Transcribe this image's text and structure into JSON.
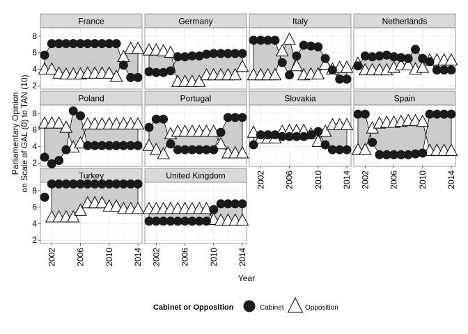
{
  "chart_data": {
    "type": "scatter",
    "xlabel": "Year",
    "ylabel_lines": [
      "Parliamentary Opinion",
      "on Scale of GAL (0) to TAN (10)"
    ],
    "xlim": [
      2001,
      2014
    ],
    "ylim": [
      1.6,
      9.0
    ],
    "x_ticks": [
      2002,
      2006,
      2010,
      2014
    ],
    "y_ticks": [
      2,
      4,
      6,
      8
    ],
    "grid": true,
    "legend": {
      "title": "Cabinet or Opposition",
      "placement": "bottom",
      "entries": [
        {
          "label": "Cabinet",
          "marker": "circle",
          "color": "#1a1a1a"
        },
        {
          "label": "Opposition",
          "marker": "triangle",
          "color": "#ffffff"
        }
      ]
    },
    "colors": {
      "panel_bg": "#ffffff",
      "strip_bg": "#d9d9d9",
      "grid": "#ebebeb",
      "ribbon": "#cccccc"
    },
    "x": [
      2001,
      2002,
      2003,
      2004,
      2005,
      2006,
      2007,
      2008,
      2009,
      2010,
      2011,
      2012,
      2013,
      2014
    ],
    "panels": [
      {
        "name": "France",
        "cabinet": [
          5.7,
          7.1,
          7.1,
          7.1,
          7.1,
          7.1,
          7.1,
          7.1,
          7.1,
          7.1,
          7.1,
          4.5,
          3.0,
          3.0
        ],
        "opposition": [
          4.0,
          4.0,
          3.5,
          3.4,
          3.4,
          3.4,
          3.5,
          3.5,
          3.5,
          3.5,
          3.1,
          5.5,
          6.5,
          6.5
        ]
      },
      {
        "name": "Germany",
        "cabinet": [
          3.7,
          3.6,
          3.6,
          3.8,
          5.5,
          5.5,
          5.6,
          5.6,
          5.8,
          5.9,
          5.9,
          5.9,
          5.9,
          5.9
        ],
        "opposition": [
          6.3,
          6.3,
          6.2,
          6.0,
          2.5,
          2.5,
          2.5,
          2.5,
          3.3,
          3.3,
          3.3,
          3.3,
          3.3,
          4.3
        ]
      },
      {
        "name": "Italy",
        "cabinet": [
          7.5,
          7.5,
          7.5,
          7.5,
          4.8,
          3.3,
          5.6,
          6.9,
          6.8,
          6.7,
          5.3,
          3.9,
          2.8,
          2.8
        ],
        "opposition": [
          3.3,
          3.3,
          3.3,
          3.3,
          6.2,
          7.6,
          4.4,
          3.3,
          3.4,
          3.4,
          4.6,
          4.0,
          4.2,
          4.2
        ]
      },
      {
        "name": "Netherlands",
        "cabinet": [
          4.4,
          5.6,
          5.5,
          5.6,
          5.7,
          5.5,
          5.4,
          5.3,
          6.4,
          5.3,
          4.9,
          3.9,
          3.9,
          3.9
        ],
        "opposition": [
          4.7,
          3.9,
          3.9,
          3.9,
          3.9,
          4.2,
          4.5,
          4.5,
          4.0,
          4.2,
          5.1,
          5.1,
          5.1,
          5.1
        ]
      },
      {
        "name": "Poland",
        "cabinet": [
          2.7,
          1.9,
          2.3,
          3.6,
          8.3,
          7.7,
          4.1,
          4.1,
          4.1,
          4.1,
          4.1,
          4.1,
          4.1,
          4.1
        ],
        "opposition": [
          6.8,
          6.8,
          6.8,
          6.3,
          3.9,
          4.4,
          6.7,
          6.7,
          6.7,
          6.7,
          6.7,
          6.7,
          6.7,
          6.7
        ]
      },
      {
        "name": "Portugal",
        "cabinet": [
          6.3,
          7.3,
          7.3,
          4.3,
          3.6,
          3.6,
          3.6,
          3.6,
          3.6,
          3.6,
          5.7,
          7.5,
          7.5,
          7.5
        ],
        "opposition": [
          4.1,
          3.6,
          3.1,
          5.5,
          5.8,
          5.8,
          5.8,
          5.8,
          5.8,
          5.8,
          4.3,
          3.2,
          3.2,
          3.2
        ]
      },
      {
        "name": "Slovakia",
        "cabinet": [
          4.2,
          5.4,
          5.4,
          5.4,
          5.2,
          5.2,
          5.2,
          5.2,
          5.4,
          5.8,
          4.2,
          3.6,
          3.6,
          3.6
        ],
        "opposition": [
          5.7,
          5.0,
          5.0,
          5.0,
          5.8,
          5.9,
          5.9,
          5.9,
          5.5,
          4.6,
          5.8,
          6.6,
          6.6,
          6.6
        ]
      },
      {
        "name": "Spain",
        "cabinet": [
          7.9,
          7.9,
          4.5,
          3.0,
          3.0,
          3.0,
          3.0,
          3.0,
          3.1,
          3.2,
          7.9,
          7.9,
          7.9,
          7.9
        ],
        "opposition": [
          3.6,
          3.6,
          6.2,
          6.8,
          6.9,
          6.9,
          7.0,
          7.1,
          7.1,
          7.0,
          3.5,
          3.5,
          3.5,
          3.5
        ]
      },
      {
        "name": "Turkey",
        "cabinet": [
          7.2,
          8.8,
          8.8,
          8.8,
          8.8,
          8.8,
          8.8,
          8.8,
          8.8,
          8.8,
          8.8,
          8.8,
          8.8,
          8.8
        ],
        "opposition": [
          null,
          4.8,
          4.8,
          4.8,
          4.8,
          5.6,
          6.5,
          6.5,
          6.5,
          6.1,
          6.1,
          5.8,
          5.8,
          5.8
        ]
      },
      {
        "name": "United Kingdom",
        "cabinet": [
          4.3,
          4.3,
          4.3,
          4.3,
          4.3,
          4.3,
          4.3,
          4.3,
          4.3,
          5.7,
          6.4,
          6.4,
          6.4,
          6.4
        ],
        "opposition": [
          5.8,
          5.8,
          5.8,
          5.8,
          5.8,
          5.8,
          5.8,
          5.8,
          5.8,
          4.5,
          4.4,
          4.4,
          4.4,
          4.4
        ]
      }
    ]
  }
}
